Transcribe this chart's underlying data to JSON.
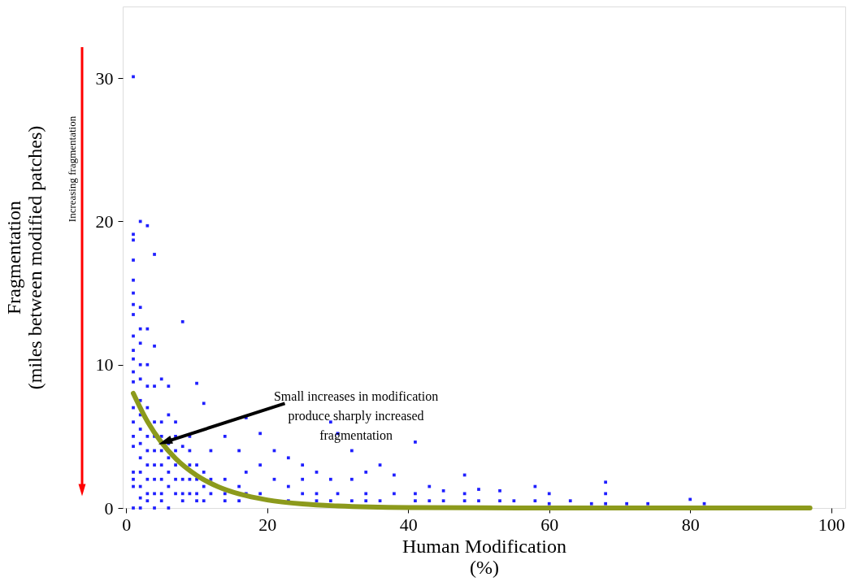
{
  "chart_data": {
    "type": "scatter",
    "xlabel": "Human Modification\n(%)",
    "ylabel": "Fragmentation\n(miles between modified patches)",
    "xlim": [
      -0.5,
      102
    ],
    "ylim": [
      0,
      35
    ],
    "xticks": [
      0,
      20,
      40,
      60,
      80,
      100
    ],
    "yticks": [
      0,
      10,
      20,
      30
    ],
    "grid": false,
    "annotations": [
      "Increasing fragmentation",
      {
        "text": "Small increases in modification\nproduce sharply increased\nfragmentation",
        "x": 5.5,
        "y": 4.6
      }
    ],
    "series": [
      {
        "color": "#1f1fff",
        "marker": "square",
        "x": [
          1,
          1,
          1,
          1,
          1,
          1,
          1,
          1,
          1,
          1,
          1,
          1,
          1,
          1,
          1,
          1,
          1,
          1,
          1,
          1,
          1,
          2,
          2,
          2,
          2,
          2,
          2,
          2,
          2,
          2,
          2,
          2,
          2,
          2,
          2,
          2,
          3,
          3,
          3,
          3,
          3,
          3,
          3,
          3,
          3,
          3,
          3,
          4,
          4,
          4,
          4,
          4,
          4,
          4,
          4,
          4,
          4,
          5,
          5,
          5,
          5,
          5,
          5,
          5,
          5,
          6,
          6,
          6,
          6,
          6,
          6,
          6,
          7,
          7,
          7,
          7,
          7,
          7,
          8,
          8,
          8,
          8,
          8,
          9,
          9,
          9,
          9,
          9,
          10,
          10,
          10,
          10,
          10,
          11,
          11,
          11,
          11,
          12,
          12,
          12,
          14,
          14,
          14,
          14,
          16,
          16,
          16,
          17,
          17,
          17,
          19,
          19,
          19,
          21,
          21,
          23,
          23,
          23,
          25,
          25,
          25,
          27,
          27,
          27,
          29,
          29,
          29,
          30,
          30,
          32,
          32,
          32,
          34,
          34,
          34,
          36,
          36,
          38,
          38,
          41,
          41,
          41,
          43,
          43,
          45,
          45,
          48,
          48,
          48,
          50,
          50,
          53,
          53,
          55,
          58,
          58,
          60,
          60,
          63,
          66,
          68,
          68,
          68,
          71,
          74,
          80,
          82
        ],
        "values": [
          30.1,
          19.1,
          18.7,
          17.3,
          15.9,
          15,
          14.2,
          13.5,
          12,
          11,
          10.4,
          9.5,
          8.8,
          7,
          6,
          5,
          4.3,
          2.5,
          2,
          1.5,
          0,
          20,
          14,
          12.5,
          11.5,
          10,
          9,
          7.5,
          6.5,
          5.5,
          4.5,
          3.5,
          2.5,
          1.5,
          0.7,
          0,
          19.7,
          12.5,
          10,
          8.5,
          7,
          5,
          4,
          3,
          2,
          1,
          0.5,
          17.7,
          11.3,
          8.5,
          6,
          5,
          4,
          3,
          2,
          1,
          0,
          9,
          6,
          5,
          4,
          3,
          2,
          1,
          0.5,
          8.5,
          6.5,
          4.5,
          3.5,
          2.5,
          1.5,
          0,
          6,
          5,
          4,
          3,
          2,
          1,
          13,
          4.3,
          2,
          1,
          0.5,
          5,
          4,
          3,
          2,
          1,
          8.7,
          3,
          2,
          1,
          0.5,
          7.3,
          2.5,
          1.5,
          0.5,
          4,
          2,
          1,
          5,
          2,
          1,
          0.5,
          4,
          1.5,
          0.5,
          6.3,
          2.5,
          1,
          5.2,
          3,
          1,
          4,
          2,
          3.5,
          1.5,
          0.5,
          3,
          2,
          1,
          2.5,
          1,
          0.5,
          6,
          2,
          0.5,
          5.2,
          1,
          4,
          2,
          0.5,
          2.5,
          1,
          0.5,
          3,
          0.5,
          2.3,
          1,
          4.6,
          1,
          0.5,
          1.5,
          0.5,
          1.2,
          0.5,
          2.3,
          1,
          0.5,
          1.3,
          0.5,
          1.2,
          0.5,
          0.5,
          1.5,
          0.5,
          1,
          0.3,
          0.5,
          0.3,
          1.8,
          1,
          0.3,
          0.3,
          0.3,
          0.6,
          0.3
        ]
      },
      {
        "type": "line",
        "color": "#8c9a1c",
        "marker": "none",
        "x": [
          1,
          3,
          5,
          7,
          10,
          13,
          16,
          20,
          25,
          30,
          40,
          50,
          60,
          97
        ],
        "values": [
          8,
          6.04,
          4.57,
          3.45,
          2.27,
          1.49,
          0.98,
          0.56,
          0.28,
          0.14,
          0.03,
          0.01,
          0,
          0
        ]
      }
    ]
  }
}
